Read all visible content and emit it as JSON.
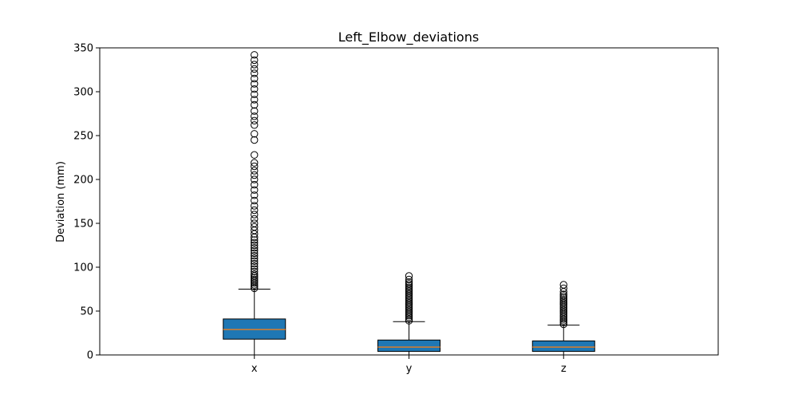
{
  "chart_data": {
    "type": "box",
    "title": "Left_Elbow_deviations",
    "xlabel": "",
    "ylabel": "Deviation (mm)",
    "ylim": [
      0,
      350
    ],
    "yticks": [
      0,
      50,
      100,
      150,
      200,
      250,
      300,
      350
    ],
    "grid": false,
    "box_color": "#1f77b4",
    "median_color": "#ff7f0e",
    "categories": [
      "x",
      "y",
      "z"
    ],
    "boxes": [
      {
        "category": "x",
        "whisker_low": 0,
        "q1": 18,
        "median": 29,
        "q3": 41,
        "whisker_high": 75,
        "outliers": [
          76,
          78,
          80,
          82,
          84,
          86,
          88,
          90,
          92,
          95,
          98,
          101,
          104,
          107,
          110,
          113,
          116,
          119,
          122,
          125,
          128,
          131,
          134,
          138,
          142,
          146,
          150,
          155,
          160,
          165,
          170,
          176,
          182,
          188,
          194,
          200,
          205,
          210,
          215,
          219,
          228,
          245,
          252,
          262,
          267,
          272,
          278,
          285,
          291,
          297,
          303,
          309,
          315,
          321,
          326,
          331,
          336,
          342
        ]
      },
      {
        "category": "y",
        "whisker_low": 0,
        "q1": 4,
        "median": 9,
        "q3": 17,
        "whisker_high": 38,
        "outliers": [
          39,
          41,
          43,
          45,
          47,
          49,
          51,
          53,
          55,
          57,
          59,
          61,
          63,
          65,
          67,
          69,
          71,
          73,
          75,
          77,
          79,
          81,
          83,
          86,
          90
        ]
      },
      {
        "category": "z",
        "whisker_low": 0,
        "q1": 4,
        "median": 9,
        "q3": 16,
        "whisker_high": 34,
        "outliers": [
          35,
          37,
          39,
          41,
          43,
          45,
          47,
          49,
          51,
          53,
          55,
          57,
          59,
          61,
          63,
          65,
          67,
          69,
          72,
          76,
          80
        ]
      }
    ]
  }
}
